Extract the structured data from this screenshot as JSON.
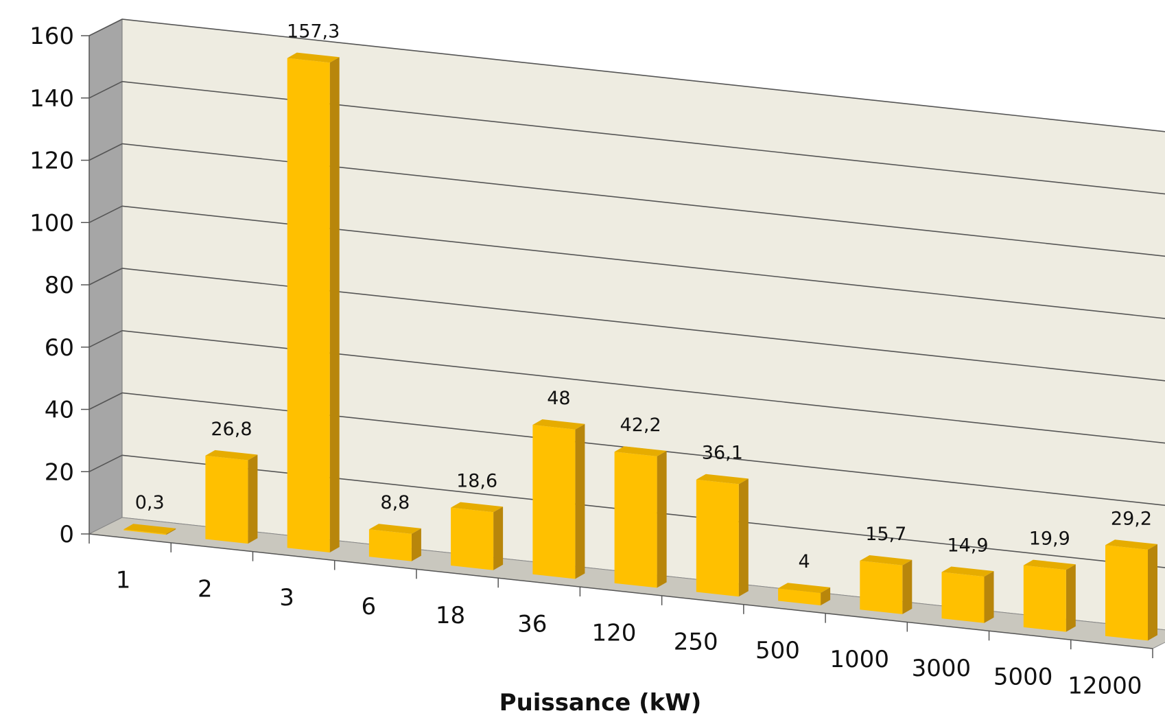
{
  "chart_data": {
    "type": "bar",
    "title": "",
    "xlabel": "Puissance (kW)",
    "ylabel": "",
    "ylim": [
      0,
      160
    ],
    "yticks": [
      0,
      20,
      40,
      60,
      80,
      100,
      120,
      140,
      160
    ],
    "grid": true,
    "style": "3d-column",
    "categories": [
      "1",
      "2",
      "3",
      "6",
      "18",
      "36",
      "120",
      "250",
      "500",
      "1000",
      "3000",
      "5000",
      "12000"
    ],
    "values": [
      0.3,
      26.8,
      157.3,
      8.8,
      18.6,
      48,
      42.2,
      36.1,
      4,
      15.7,
      14.9,
      19.9,
      29.2
    ],
    "data_labels": [
      "0,3",
      "26,8",
      "157,3",
      "8,8",
      "18,6",
      "48",
      "42,2",
      "36,1",
      "4",
      "15,7",
      "14,9",
      "19,9",
      "29,2"
    ],
    "colors": {
      "bar_front": "#FFC000",
      "bar_side": "#B8860B",
      "bar_top": "#E6AC00",
      "back_wall": "#EEECE1",
      "side_wall": "#A6A6A6",
      "floor": "#C9C7BE",
      "gridline": "#555555"
    }
  }
}
